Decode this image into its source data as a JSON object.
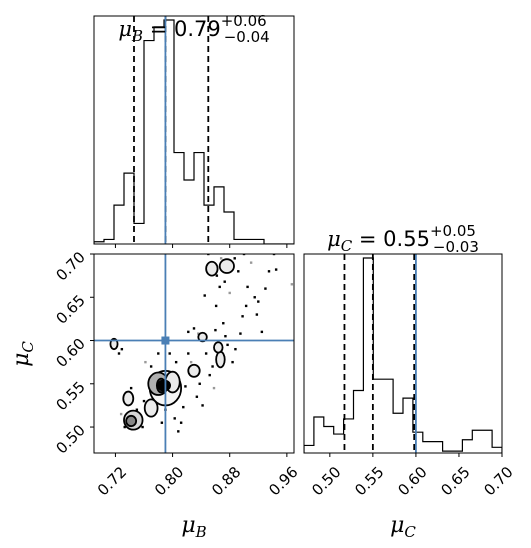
{
  "chart_data": [
    {
      "type": "histogram",
      "panel": "mu_B marginal",
      "title": {
        "symbol": "μ",
        "sub": "B",
        "eq": " = 0.79",
        "plus": "+0.06",
        "minus": "−0.04"
      },
      "xlim": [
        0.69,
        0.97
      ],
      "bin_edges": [
        0.69,
        0.704,
        0.718,
        0.732,
        0.746,
        0.76,
        0.774,
        0.788,
        0.802,
        0.816,
        0.83,
        0.844,
        0.858,
        0.872,
        0.886,
        0.9,
        0.914,
        0.928,
        0.942,
        0.956,
        0.97
      ],
      "counts": [
        1,
        2,
        17,
        31,
        9,
        89,
        95,
        98,
        40,
        28,
        40,
        17,
        25,
        14,
        2,
        2,
        2,
        0,
        0,
        0
      ],
      "quantiles": [
        0.746,
        0.79,
        0.85
      ],
      "truth": 0.79
    },
    {
      "type": "histogram",
      "panel": "mu_C marginal",
      "title": {
        "symbol": "μ",
        "sub": "C",
        "eq": " = 0.55",
        "plus": "+0.05",
        "minus": "−0.03"
      },
      "xlim": [
        0.47,
        0.7
      ],
      "bin_edges": [
        0.47,
        0.4815,
        0.493,
        0.5045,
        0.516,
        0.5275,
        0.539,
        0.5505,
        0.562,
        0.5735,
        0.585,
        0.5965,
        0.608,
        0.6195,
        0.631,
        0.6425,
        0.654,
        0.6655,
        0.677,
        0.6885,
        0.7
      ],
      "counts": [
        4,
        19,
        14,
        10,
        18,
        33,
        103,
        39,
        39,
        21,
        29,
        11,
        6,
        6,
        1,
        1,
        7,
        12,
        12,
        3
      ],
      "quantiles": [
        0.517,
        0.55,
        0.598
      ],
      "truth": 0.6
    },
    {
      "type": "scatter",
      "panel": "mu_B vs mu_C joint",
      "xlabel": "μB",
      "ylabel": "μC",
      "xlim": [
        0.69,
        0.97
      ],
      "ylim": [
        0.47,
        0.7
      ],
      "xticks": [
        "0.72",
        "0.80",
        "0.88",
        "0.96"
      ],
      "xtick_values": [
        0.72,
        0.8,
        0.88,
        0.96
      ],
      "yticks": [
        "0.50",
        "0.55",
        "0.60",
        "0.65",
        "0.70"
      ],
      "ytick_values": [
        0.5,
        0.55,
        0.6,
        0.65,
        0.7
      ],
      "truth": [
        0.79,
        0.6
      ],
      "contour_blobs": [
        {
          "cx": 0.79,
          "cy": 0.545,
          "rx": 0.022,
          "ry": 0.02,
          "level": 0.95
        },
        {
          "cx": 0.78,
          "cy": 0.55,
          "rx": 0.014,
          "ry": 0.013,
          "level": 0.6
        },
        {
          "cx": 0.784,
          "cy": 0.548,
          "rx": 0.006,
          "ry": 0.008,
          "level": 0.1
        },
        {
          "cx": 0.745,
          "cy": 0.508,
          "rx": 0.013,
          "ry": 0.011,
          "level": 0.8
        },
        {
          "cx": 0.742,
          "cy": 0.507,
          "rx": 0.007,
          "ry": 0.006,
          "level": 0.4
        },
        {
          "cx": 0.77,
          "cy": 0.522,
          "rx": 0.009,
          "ry": 0.01,
          "level": 0.9
        },
        {
          "cx": 0.738,
          "cy": 0.533,
          "rx": 0.007,
          "ry": 0.008,
          "level": 0.9
        },
        {
          "cx": 0.8,
          "cy": 0.552,
          "rx": 0.01,
          "ry": 0.012,
          "level": 0.9
        },
        {
          "cx": 0.83,
          "cy": 0.565,
          "rx": 0.008,
          "ry": 0.007,
          "level": 0.9
        },
        {
          "cx": 0.867,
          "cy": 0.578,
          "rx": 0.006,
          "ry": 0.009,
          "level": 0.9
        },
        {
          "cx": 0.864,
          "cy": 0.592,
          "rx": 0.006,
          "ry": 0.006,
          "level": 0.9
        },
        {
          "cx": 0.842,
          "cy": 0.604,
          "rx": 0.006,
          "ry": 0.005,
          "level": 0.9
        },
        {
          "cx": 0.718,
          "cy": 0.596,
          "rx": 0.005,
          "ry": 0.006,
          "level": 0.9
        },
        {
          "cx": 0.876,
          "cy": 0.686,
          "rx": 0.01,
          "ry": 0.008,
          "level": 0.9
        },
        {
          "cx": 0.855,
          "cy": 0.683,
          "rx": 0.008,
          "ry": 0.008,
          "level": 0.9
        }
      ],
      "points": [
        [
          0.725,
          0.585
        ],
        [
          0.729,
          0.59
        ],
        [
          0.76,
          0.53
        ],
        [
          0.762,
          0.575
        ],
        [
          0.766,
          0.515
        ],
        [
          0.808,
          0.495
        ],
        [
          0.812,
          0.505
        ],
        [
          0.815,
          0.523
        ],
        [
          0.818,
          0.547
        ],
        [
          0.822,
          0.585
        ],
        [
          0.826,
          0.575
        ],
        [
          0.834,
          0.535
        ],
        [
          0.838,
          0.55
        ],
        [
          0.842,
          0.525
        ],
        [
          0.847,
          0.585
        ],
        [
          0.852,
          0.56
        ],
        [
          0.856,
          0.57
        ],
        [
          0.858,
          0.545
        ],
        [
          0.861,
          0.64
        ],
        [
          0.862,
          0.675
        ],
        [
          0.866,
          0.662
        ],
        [
          0.871,
          0.62
        ],
        [
          0.874,
          0.605
        ],
        [
          0.877,
          0.595
        ],
        [
          0.88,
          0.655
        ],
        [
          0.884,
          0.575
        ],
        [
          0.888,
          0.59
        ],
        [
          0.892,
          0.68
        ],
        [
          0.895,
          0.608
        ],
        [
          0.898,
          0.628
        ],
        [
          0.903,
          0.64
        ],
        [
          0.91,
          0.69
        ],
        [
          0.915,
          0.65
        ],
        [
          0.918,
          0.63
        ],
        [
          0.925,
          0.61
        ],
        [
          0.93,
          0.66
        ],
        [
          0.935,
          0.68
        ],
        [
          0.942,
          0.7
        ],
        [
          0.967,
          0.665
        ],
        [
          0.85,
          0.7
        ],
        [
          0.845,
          0.652
        ],
        [
          0.873,
          0.668
        ],
        [
          0.887,
          0.695
        ],
        [
          0.822,
          0.61
        ],
        [
          0.83,
          0.614
        ],
        [
          0.836,
          0.608
        ],
        [
          0.796,
          0.585
        ],
        [
          0.805,
          0.575
        ],
        [
          0.77,
          0.57
        ],
        [
          0.78,
          0.585
        ],
        [
          0.742,
          0.545
        ],
        [
          0.75,
          0.52
        ],
        [
          0.728,
          0.515
        ],
        [
          0.733,
          0.5
        ],
        [
          0.758,
          0.5
        ],
        [
          0.79,
          0.52
        ],
        [
          0.797,
          0.532
        ],
        [
          0.803,
          0.51
        ],
        [
          0.785,
          0.505
        ],
        [
          0.868,
          0.695
        ],
        [
          0.9,
          0.7
        ],
        [
          0.905,
          0.662
        ],
        [
          0.92,
          0.645
        ],
        [
          0.945,
          0.682
        ],
        [
          0.86,
          0.612
        ]
      ]
    }
  ]
}
